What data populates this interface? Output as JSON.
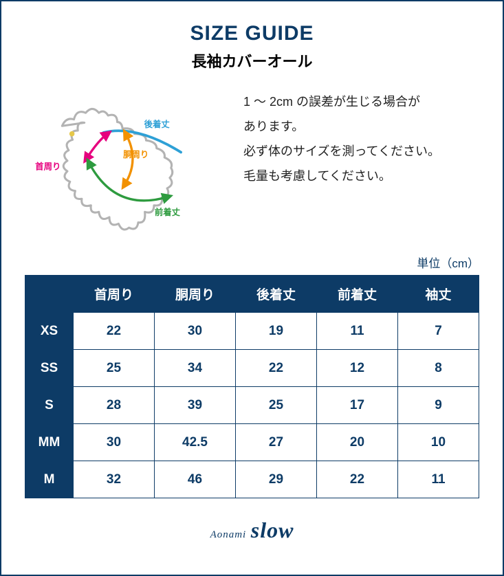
{
  "colors": {
    "brand_navy": "#0d3b66",
    "table_cell_text": "#0d3b66",
    "title_text": "#0d3b66",
    "unit_text": "#0d3b66",
    "body_text": "#222222",
    "dog_outline": "#b3b3b3",
    "label_neck": "#e6007e",
    "label_girth": "#f29100",
    "label_back": "#2ea0d6",
    "label_front": "#2e9b3f",
    "eye": "#e6c84a"
  },
  "title": "SIZE GUIDE",
  "subtitle": "長袖カバーオール",
  "diagram_labels": {
    "neck": "首周り",
    "girth": "胴周り",
    "back": "後着丈",
    "front": "前着丈"
  },
  "notes": {
    "line1": "1 〜 2cm の誤差が生じる場合が",
    "line2": "あります。",
    "line3": "必ず体のサイズを測ってください。",
    "line4": "毛量も考慮してください。"
  },
  "unit_label": "単位（cm）",
  "table": {
    "columns": [
      "首周り",
      "胴周り",
      "後着丈",
      "前着丈",
      "袖丈"
    ],
    "rows": [
      {
        "size": "XS",
        "values": [
          "22",
          "30",
          "19",
          "11",
          "7"
        ]
      },
      {
        "size": "SS",
        "values": [
          "25",
          "34",
          "22",
          "12",
          "8"
        ]
      },
      {
        "size": "S",
        "values": [
          "28",
          "39",
          "25",
          "17",
          "9"
        ]
      },
      {
        "size": "MM",
        "values": [
          "30",
          "42.5",
          "27",
          "20",
          "10"
        ]
      },
      {
        "size": "M",
        "values": [
          "32",
          "46",
          "29",
          "22",
          "11"
        ]
      }
    ]
  },
  "logo": {
    "small": "Aonami",
    "large": "slow"
  }
}
